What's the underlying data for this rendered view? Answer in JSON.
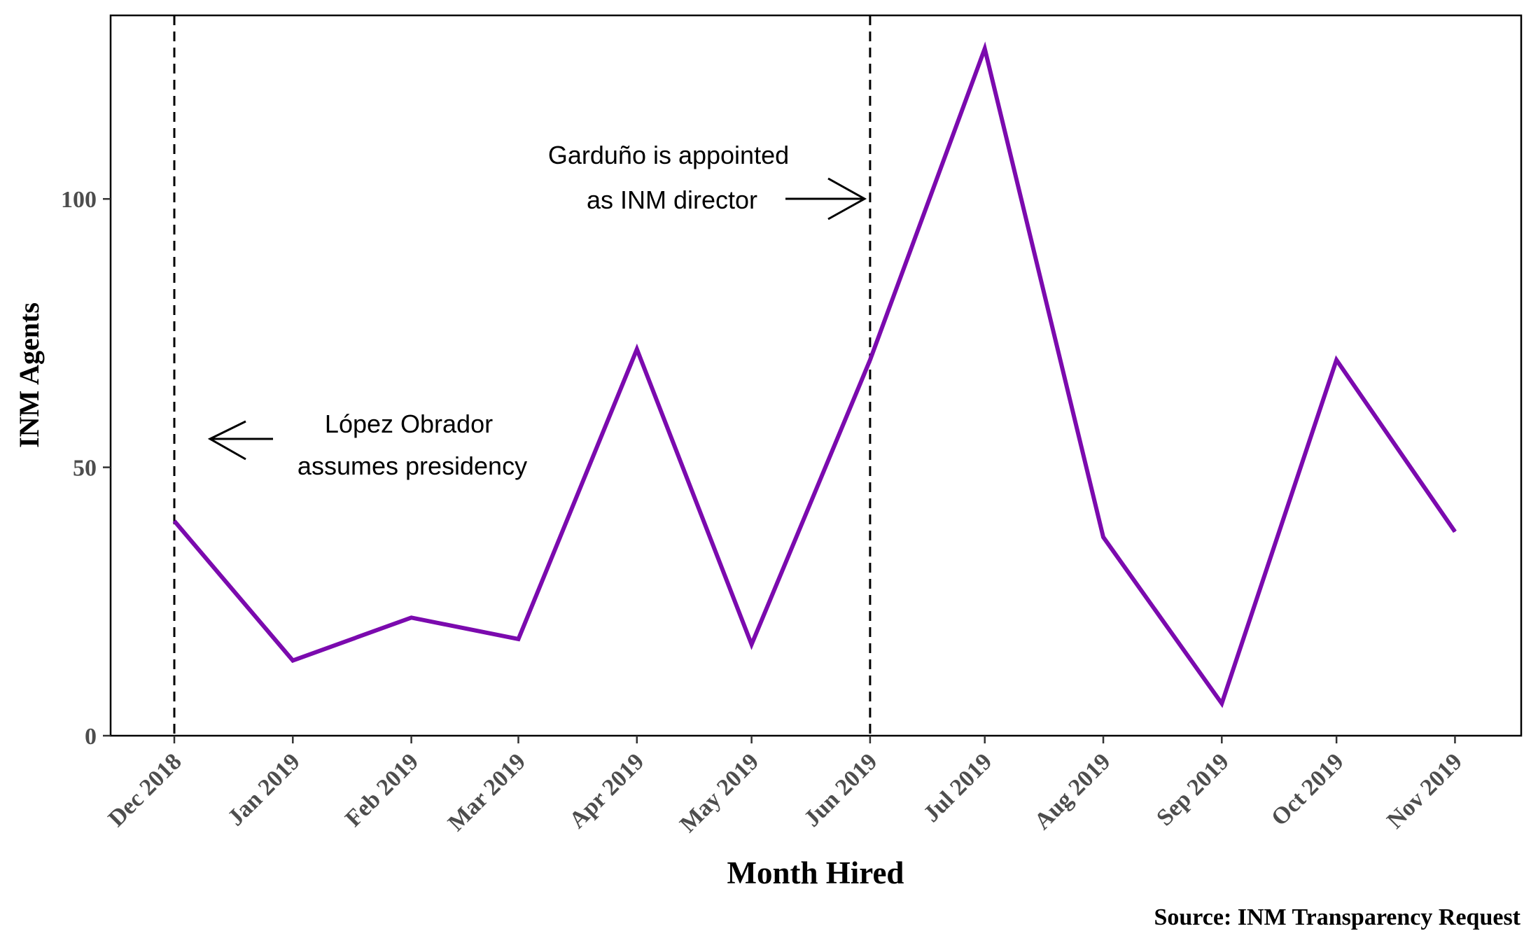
{
  "chart_data": {
    "type": "line",
    "title": "",
    "xlabel": "Month Hired",
    "ylabel": "INM Agents",
    "categories": [
      "Dec 2018",
      "Jan 2019",
      "Feb 2019",
      "Mar 2019",
      "Apr 2019",
      "May 2019",
      "Jun 2019",
      "Jul 2019",
      "Aug 2019",
      "Sep 2019",
      "Oct 2019",
      "Nov 2019"
    ],
    "x_days": [
      0,
      31,
      62,
      90,
      121,
      151,
      182,
      212,
      243,
      274,
      304,
      335
    ],
    "values": [
      40,
      14,
      22,
      18,
      72,
      17,
      70,
      128,
      37,
      6,
      70,
      38
    ],
    "ylim": [
      0,
      132
    ],
    "yticks": [
      0,
      50,
      100
    ],
    "grid": false,
    "line_color": "#7b0aae",
    "vlines": [
      {
        "at": "Dec 2018",
        "style": "dashed"
      },
      {
        "at": "Jun 2019",
        "style": "dashed"
      }
    ],
    "annotations": [
      {
        "lines": [
          "López Obrador",
          "assumes presidency"
        ],
        "arrow": "left"
      },
      {
        "lines": [
          "Garduño is appointed",
          "as INM director"
        ],
        "arrow": "right"
      }
    ],
    "source": "Source: INM Transparency Request"
  }
}
